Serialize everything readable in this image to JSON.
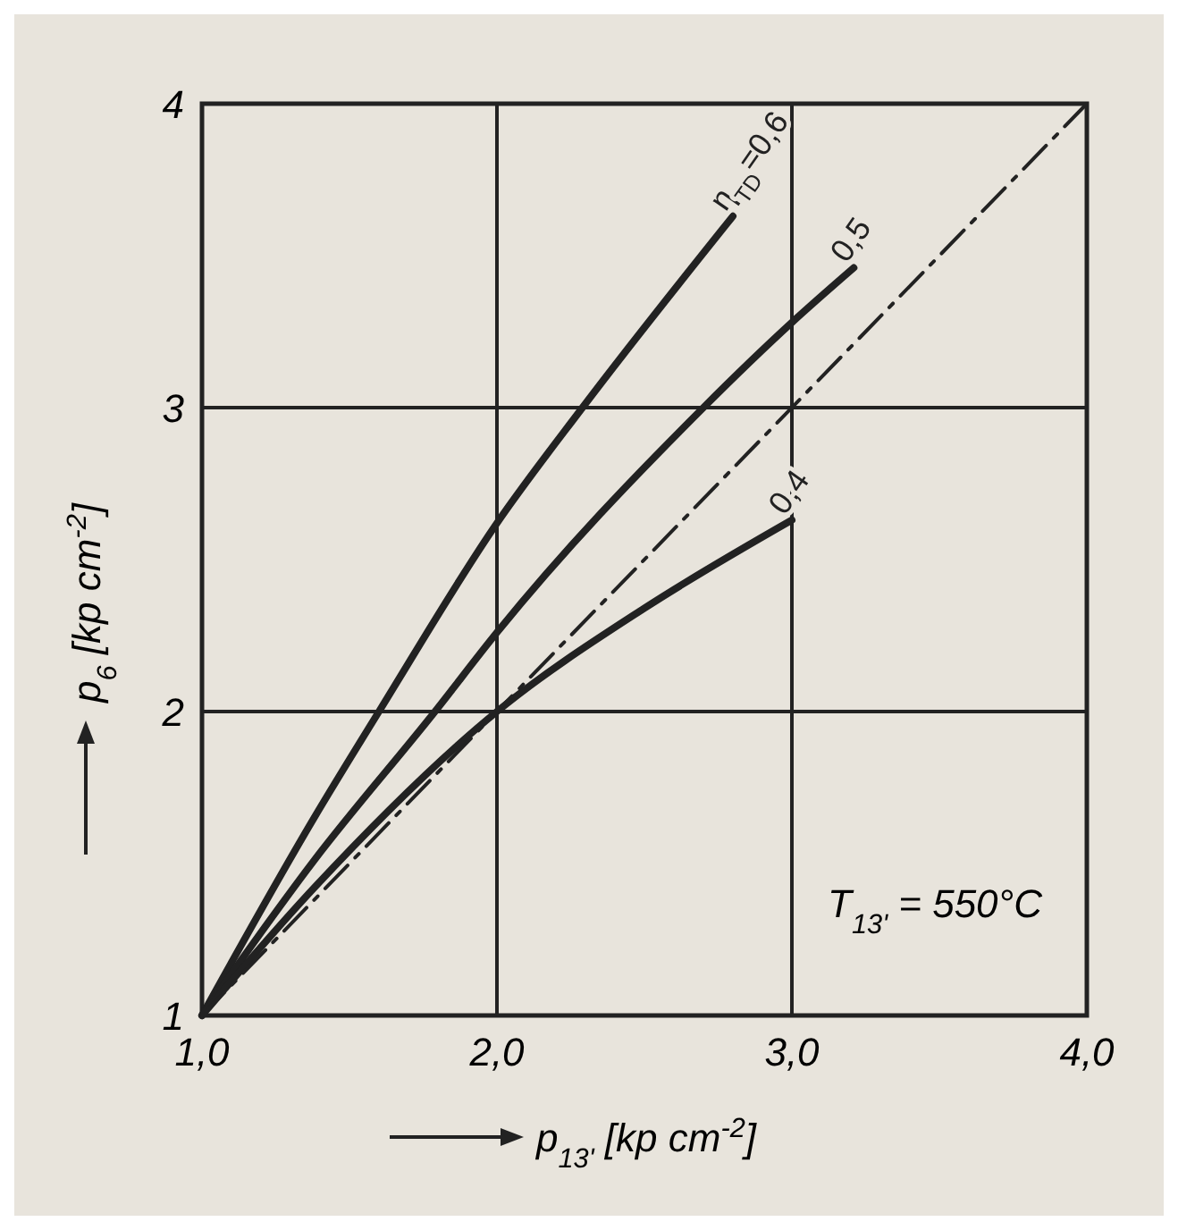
{
  "chart_data": {
    "type": "line",
    "xlabel": "p$_{13'}$ [kp cm$^{-2}$]",
    "ylabel": "p$_{6}$ [kp cm$^{-2}$]",
    "xlim": [
      1,
      4
    ],
    "ylim": [
      1,
      4
    ],
    "xticks": [
      {
        "value": 1,
        "label": "1,0"
      },
      {
        "value": 2,
        "label": "2,0"
      },
      {
        "value": 3,
        "label": "3,0"
      },
      {
        "value": 4,
        "label": "4,0"
      }
    ],
    "yticks": [
      1,
      2,
      3,
      4
    ],
    "grid": true,
    "series": [
      {
        "name": "η$_{TD}$=0,6",
        "color": "#222222",
        "x": [
          1,
          1.38,
          1.6,
          2,
          2.29,
          2.8
        ],
        "values": [
          1,
          1.65,
          2,
          2.62,
          3,
          3.63
        ]
      },
      {
        "name": "0,5",
        "color": "#222222",
        "x": [
          1,
          1.38,
          1.79,
          2,
          2.7,
          3,
          3.21
        ],
        "values": [
          1,
          1.51,
          2,
          2.26,
          3,
          3.28,
          3.46
        ]
      },
      {
        "name": "0,4",
        "color": "#222222",
        "x": [
          1,
          1.38,
          2,
          2.5,
          3
        ],
        "values": [
          1,
          1.42,
          2,
          2.34,
          2.63
        ]
      },
      {
        "color": "#222222",
        "line_style": "dashed",
        "x": [
          1,
          4
        ],
        "values": [
          1,
          4
        ]
      }
    ],
    "annotations": [
      "T$_{13'}$ = 550°C"
    ]
  }
}
